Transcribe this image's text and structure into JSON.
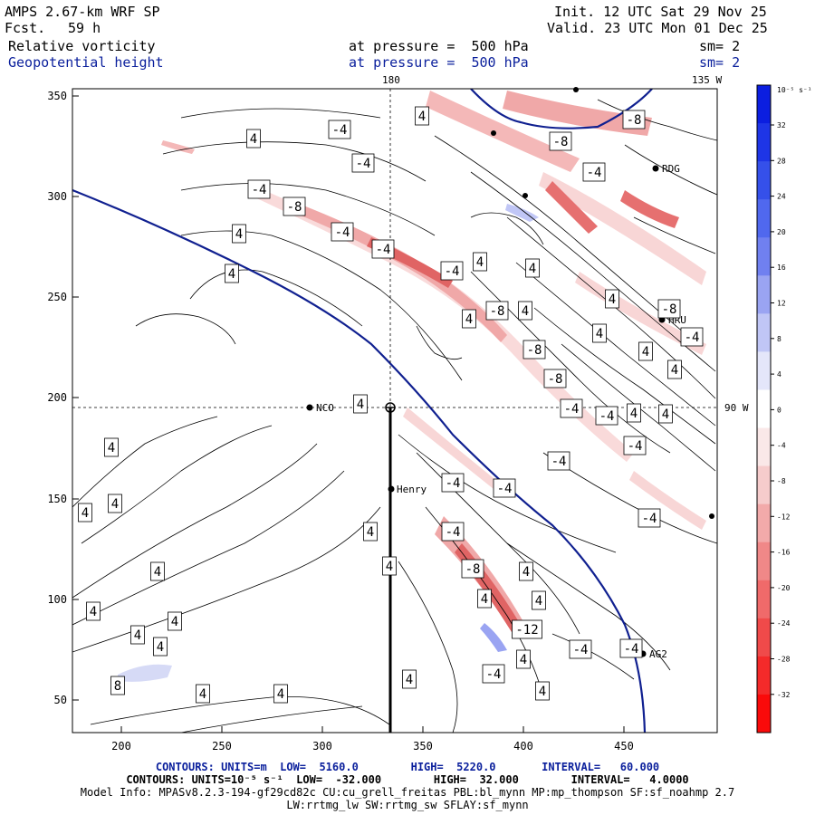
{
  "header": {
    "model": "AMPS 2.67-km WRF SP",
    "forecast_label": "Fcst.",
    "forecast_hours": "59 h",
    "init": "Init. 12 UTC Sat 29 Nov 25",
    "valid": "Valid. 23 UTC Mon 01 Dec 25",
    "field1": "Relative vorticity",
    "field2": "Geopotential height",
    "pressure1": "at pressure =  500 hPa",
    "pressure2": "at pressure =  500 hPa",
    "sm1": "sm= 2",
    "sm2": "sm= 2",
    "lon_top_1": "180",
    "lon_top_2": "135 W",
    "lon_right": "90 W"
  },
  "axes": {
    "x_ticks": [
      "200",
      "250",
      "300",
      "350",
      "400",
      "450"
    ],
    "y_ticks": [
      "350",
      "300",
      "250",
      "200",
      "150",
      "100",
      "50"
    ]
  },
  "stations": {
    "rdg": "RDG",
    "nco": "NCO",
    "henry": "Henry",
    "hru": "HRU",
    "ag2": "AG2"
  },
  "contour_labels": [
    "4",
    "-4",
    "-8",
    "-12",
    "8"
  ],
  "colorbar": {
    "unit": "10⁻⁵ s⁻¹",
    "ticks": [
      "32",
      "28",
      "24",
      "20",
      "16",
      "12",
      "8",
      "4",
      "0",
      "-4",
      "-8",
      "-12",
      "-16",
      "-20",
      "-24",
      "-28",
      "-32"
    ],
    "colors": [
      "#0b1ee0",
      "#1e35e6",
      "#3550ea",
      "#5068ee",
      "#7080f0",
      "#9aa4f2",
      "#c0c6f6",
      "#e4e6fa",
      "#ffffff",
      "#fae8e8",
      "#f6cccc",
      "#f2aaaa",
      "#f08888",
      "#f06a6a",
      "#f04a4a",
      "#f42a2a",
      "#fa0a0a"
    ]
  },
  "footer": {
    "line1": "CONTOURS: UNITS=m  LOW=  5160.0        HIGH=  5220.0       INTERVAL=   60.000",
    "line2": "CONTOURS: UNITS=10⁻⁵ s⁻¹  LOW=  -32.000        HIGH=  32.000        INTERVAL=   4.0000",
    "line3": "Model Info: MPASv8.2.3-194-gf29cd82c CU:cu_grell_freitas PBL:bl_mynn MP:mp_thompson SF:sf_noahmp 2.7",
    "line4": "LW:rrtmg_lw SW:rrtmg_sw SFLAY:sf_mynn"
  }
}
